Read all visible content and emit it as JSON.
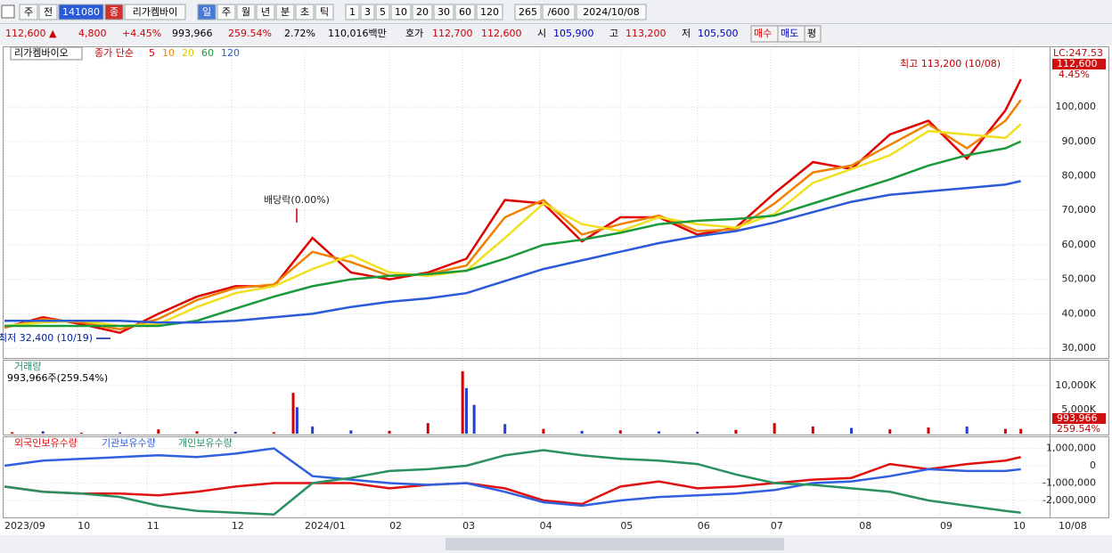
{
  "toolbar": {
    "items": [
      "주",
      "전",
      "141080",
      "종",
      "리가켐바이",
      "일",
      "주",
      "월",
      "년",
      "분",
      "초",
      "틱",
      "1",
      "3",
      "5",
      "10",
      "20",
      "30",
      "60",
      "120",
      "265",
      "/600",
      "2024/10/08"
    ]
  },
  "quote": {
    "items": [
      {
        "text": "112,600 ▲",
        "color": "#d00000"
      },
      {
        "text": "4,800",
        "color": "#d00000"
      },
      {
        "text": "+4.45%",
        "color": "#d00000"
      },
      {
        "text": "993,966",
        "color": "#000000"
      },
      {
        "text": "259.54%",
        "color": "#d00000"
      },
      {
        "text": "2.72%",
        "color": "#000000"
      },
      {
        "text": "110,016백만",
        "color": "#000000"
      },
      {
        "text": "호가",
        "color": "#000000"
      },
      {
        "text": "112,700",
        "color": "#d00000"
      },
      {
        "text": "112,600",
        "color": "#d00000"
      },
      {
        "text": "시",
        "color": "#000000"
      },
      {
        "text": "105,900",
        "color": "#0000c0"
      },
      {
        "text": "고",
        "color": "#000000"
      },
      {
        "text": "113,200",
        "color": "#d00000"
      },
      {
        "text": "저",
        "color": "#000000"
      },
      {
        "text": "105,500",
        "color": "#0000c0"
      },
      {
        "text": "매수",
        "color": "#d00000"
      },
      {
        "text": "매도",
        "color": "#0000c0"
      },
      {
        "text": "평",
        "color": "#000000"
      }
    ]
  },
  "chart_data": [
    {
      "type": "line",
      "title": "리가켐바이오",
      "subtitle": "종가 단순",
      "lc_label": "LC:247.53",
      "last_label": "112,600",
      "change_label": "4.45%",
      "annotations": [
        "최고 113,200 (10/08)",
        "최저 32,400 (10/19)",
        "배당락(0.00%)"
      ],
      "x": [
        0,
        10,
        20,
        30,
        40,
        50,
        60,
        70,
        80,
        90,
        100,
        110,
        120,
        130,
        140,
        150,
        160,
        170,
        180,
        190,
        200,
        210,
        220,
        230,
        240,
        250,
        260,
        264
      ],
      "xlim": [
        0,
        265
      ],
      "ylim": [
        27200,
        116800
      ],
      "yticks": [
        {
          "value": 30000,
          "label": "30,000"
        },
        {
          "value": 40000,
          "label": "40,000"
        },
        {
          "value": 50000,
          "label": "50,000"
        },
        {
          "value": 60000,
          "label": "60,000"
        },
        {
          "value": 70000,
          "label": "70,000"
        },
        {
          "value": 80000,
          "label": "80,000"
        },
        {
          "value": 90000,
          "label": "90,000"
        },
        {
          "value": 100000,
          "label": "100,000"
        }
      ],
      "grid": true,
      "series": [
        {
          "name": "5",
          "color": "#e00000",
          "values": [
            36000,
            39000,
            37000,
            34500,
            40000,
            45000,
            48000,
            48000,
            62000,
            52000,
            50000,
            52000,
            56000,
            73000,
            72000,
            61000,
            68000,
            68000,
            63000,
            65000,
            75000,
            84000,
            82000,
            92000,
            96000,
            85000,
            99000,
            108000
          ]
        },
        {
          "name": "10",
          "color": "#f08000",
          "values": [
            36000,
            38500,
            37500,
            35500,
            38500,
            44000,
            47500,
            48500,
            58000,
            55000,
            51000,
            51500,
            54000,
            68000,
            73000,
            63000,
            66000,
            68500,
            64000,
            64500,
            72000,
            81000,
            83000,
            89000,
            95000,
            88000,
            96000,
            102000
          ]
        },
        {
          "name": "20",
          "color": "#f0e020",
          "values": [
            36500,
            37500,
            38000,
            36500,
            37000,
            42000,
            46000,
            48000,
            53000,
            57000,
            52000,
            51000,
            52500,
            62000,
            72000,
            66000,
            64000,
            68000,
            66000,
            65000,
            69000,
            78000,
            82000,
            86000,
            93000,
            92000,
            91000,
            95000
          ]
        },
        {
          "name": "60",
          "color": "#1a9a3a",
          "values": [
            36500,
            36500,
            36500,
            36500,
            36500,
            38000,
            41500,
            45000,
            48000,
            50000,
            51000,
            51500,
            52500,
            56000,
            60000,
            61500,
            63500,
            66000,
            67000,
            67500,
            68500,
            72000,
            75500,
            79000,
            83000,
            86000,
            88000,
            90000
          ]
        },
        {
          "name": "120",
          "color": "#2a5ad8",
          "values": [
            38000,
            38000,
            38000,
            38000,
            37500,
            37500,
            38000,
            39000,
            40000,
            42000,
            43500,
            44500,
            46000,
            49500,
            53000,
            55500,
            58000,
            60500,
            62500,
            64000,
            66500,
            69500,
            72500,
            74500,
            75500,
            76500,
            77500,
            78500
          ]
        }
      ]
    },
    {
      "type": "bar",
      "title": "거래량",
      "subtitle": "993,966주(259.54%)",
      "last_labels": [
        "993,966",
        "259.54%"
      ],
      "x": [
        2,
        10,
        20,
        30,
        40,
        50,
        60,
        70,
        75,
        76,
        80,
        90,
        100,
        110,
        119,
        120,
        122,
        130,
        140,
        150,
        160,
        170,
        180,
        190,
        200,
        210,
        220,
        230,
        240,
        250,
        260,
        264
      ],
      "values": [
        300,
        500,
        200,
        250,
        900,
        500,
        400,
        300,
        8500,
        5500,
        1500,
        700,
        600,
        2200,
        13000,
        9500,
        6000,
        2000,
        1000,
        600,
        700,
        500,
        400,
        800,
        2200,
        1500,
        1200,
        900,
        1300,
        1500,
        1000,
        994
      ],
      "colors": [
        "#d00000",
        "#2040d0",
        "#d00000",
        "#2040d0",
        "#d00000",
        "#d00000",
        "#2040d0",
        "#d00000",
        "#d00000",
        "#2040d0",
        "#2040d0",
        "#2040d0",
        "#d00000",
        "#d00000",
        "#d00000",
        "#2040d0",
        "#2040d0",
        "#2040d0",
        "#d00000",
        "#2040d0",
        "#d00000",
        "#2040d0",
        "#2040d0",
        "#d00000",
        "#d00000",
        "#d00000",
        "#2040d0",
        "#d00000",
        "#d00000",
        "#2040d0",
        "#d00000",
        "#d00000"
      ],
      "xlim": [
        0,
        265
      ],
      "ylim": [
        0,
        15200
      ],
      "yticks": [
        {
          "value": 5000,
          "label": "5,000K"
        },
        {
          "value": 10000,
          "label": "10,000K"
        }
      ]
    },
    {
      "type": "line",
      "x_end_label": "10/08",
      "x": [
        0,
        10,
        20,
        30,
        40,
        50,
        60,
        70,
        80,
        90,
        100,
        110,
        120,
        130,
        140,
        150,
        160,
        170,
        180,
        190,
        200,
        210,
        220,
        230,
        240,
        250,
        260,
        264
      ],
      "xlim": [
        0,
        265
      ],
      "ylim": [
        -2920000,
        1590000
      ],
      "yticks": [
        {
          "value": 1000000,
          "label": "1,000,000"
        },
        0,
        {
          "value": -1000000,
          "label": "-1,000,000"
        },
        {
          "value": -2000000,
          "label": "-2,000,000"
        }
      ],
      "xticks": [
        {
          "value": 0,
          "label": "2023/09"
        },
        {
          "value": 19,
          "label": "10"
        },
        {
          "value": 37,
          "label": "11"
        },
        {
          "value": 59,
          "label": "12"
        },
        {
          "value": 78,
          "label": "2024/01"
        },
        {
          "value": 100,
          "label": "02"
        },
        {
          "value": 119,
          "label": "03"
        },
        {
          "value": 139,
          "label": "04"
        },
        {
          "value": 160,
          "label": "05"
        },
        {
          "value": 180,
          "label": "06"
        },
        {
          "value": 199,
          "label": "07"
        },
        {
          "value": 222,
          "label": "08"
        },
        {
          "value": 243,
          "label": "09"
        },
        {
          "value": 262,
          "label": "10"
        }
      ],
      "series": [
        {
          "name": "외국인보유수량",
          "color": "#e01010",
          "values": [
            -1200000,
            -1500000,
            -1600000,
            -1600000,
            -1700000,
            -1500000,
            -1200000,
            -1000000,
            -1000000,
            -1000000,
            -1300000,
            -1100000,
            -1000000,
            -1300000,
            -2000000,
            -2200000,
            -1200000,
            -900000,
            -1300000,
            -1200000,
            -1000000,
            -800000,
            -700000,
            100000,
            -200000,
            100000,
            300000,
            500000
          ]
        },
        {
          "name": "기관보유수량",
          "color": "#3060e0",
          "values": [
            0,
            300000,
            400000,
            500000,
            600000,
            500000,
            700000,
            1000000,
            -600000,
            -800000,
            -1000000,
            -1100000,
            -1000000,
            -1500000,
            -2100000,
            -2300000,
            -2000000,
            -1800000,
            -1700000,
            -1600000,
            -1400000,
            -1000000,
            -900000,
            -600000,
            -200000,
            -300000,
            -300000,
            -200000
          ]
        },
        {
          "name": "개인보유수량",
          "color": "#2a9060",
          "values": [
            -1200000,
            -1500000,
            -1600000,
            -1800000,
            -2300000,
            -2600000,
            -2700000,
            -2800000,
            -1000000,
            -700000,
            -300000,
            -200000,
            0,
            600000,
            900000,
            600000,
            400000,
            300000,
            100000,
            -500000,
            -1000000,
            -1100000,
            -1300000,
            -1500000,
            -2000000,
            -2300000,
            -2600000,
            -2700000
          ]
        }
      ]
    }
  ]
}
